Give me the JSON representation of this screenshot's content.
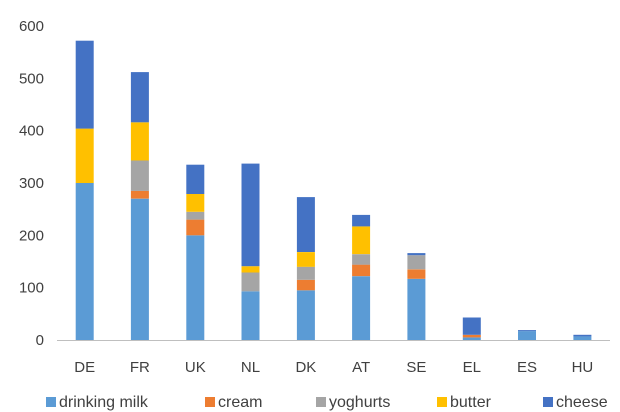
{
  "chart_data": {
    "type": "bar",
    "stacked": true,
    "title": "",
    "xlabel": "",
    "ylabel": "",
    "ylim": [
      0,
      600
    ],
    "yticks": [
      0,
      100,
      200,
      300,
      400,
      500,
      600
    ],
    "grid": false,
    "legend_position": "bottom",
    "categories": [
      "DE",
      "FR",
      "UK",
      "NL",
      "DK",
      "AT",
      "SE",
      "EL",
      "ES",
      "HU"
    ],
    "series": [
      {
        "name": "drinking milk",
        "color": "#5B9BD5",
        "values": [
          300,
          270,
          200,
          93,
          95,
          122,
          117,
          5,
          17,
          7
        ]
      },
      {
        "name": "cream",
        "color": "#ED7D31",
        "values": [
          0,
          15,
          30,
          0,
          20,
          22,
          18,
          5,
          0,
          0
        ]
      },
      {
        "name": "yoghurts",
        "color": "#A5A5A5",
        "values": [
          0,
          58,
          15,
          36,
          25,
          20,
          27,
          0,
          0,
          0
        ]
      },
      {
        "name": "butter",
        "color": "#FFC000",
        "values": [
          104,
          73,
          34,
          12,
          28,
          53,
          0,
          0,
          0,
          0
        ]
      },
      {
        "name": "cheese",
        "color": "#4472C4",
        "values": [
          168,
          96,
          56,
          196,
          105,
          22,
          4,
          33,
          2,
          3
        ]
      }
    ]
  }
}
